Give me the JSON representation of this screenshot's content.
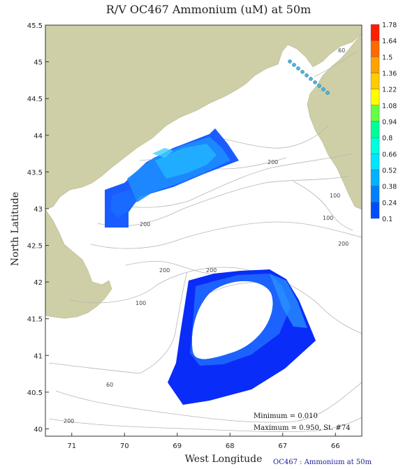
{
  "title": "R/V OC467 Ammonium (uM) at 50m",
  "axes": {
    "xlabel": "West Longitude",
    "ylabel": "North Latitude",
    "x_ticks": [
      "71",
      "70",
      "69",
      "68",
      "67",
      "66"
    ],
    "y_ticks": [
      "45.5",
      "45",
      "44.5",
      "44",
      "43.5",
      "43",
      "42.5",
      "42",
      "41.5",
      "41",
      "40.5",
      "40"
    ],
    "xlim": [
      71.5,
      65.5
    ],
    "ylim": [
      39.9,
      45.5
    ]
  },
  "colorbar": {
    "labels": [
      "1.78",
      "1.64",
      "1.5",
      "1.36",
      "1.22",
      "1.08",
      "0.94",
      "0.8",
      "0.66",
      "0.52",
      "0.38",
      "0.24",
      "0.1"
    ],
    "colors": [
      "#ff1e00",
      "#ff6a00",
      "#ffa200",
      "#ffcc00",
      "#ffff00",
      "#66ff44",
      "#00ff99",
      "#00ffdd",
      "#00e5ff",
      "#00b2ff",
      "#0080ff",
      "#004cff",
      "#001aff"
    ]
  },
  "contour_labels": [
    "60",
    "100",
    "200",
    "200",
    "200",
    "100",
    "200",
    "200",
    "100",
    "60",
    "200"
  ],
  "stats": {
    "minimum": "Minimum = 0.010",
    "maximum": "Maximum = 0.950, St. #74"
  },
  "credit": "OC467 : Ammonium at 50m",
  "colors": {
    "land": "#cfcfa7",
    "contour": "#b5b5b5",
    "station": "#45b8e6"
  }
}
